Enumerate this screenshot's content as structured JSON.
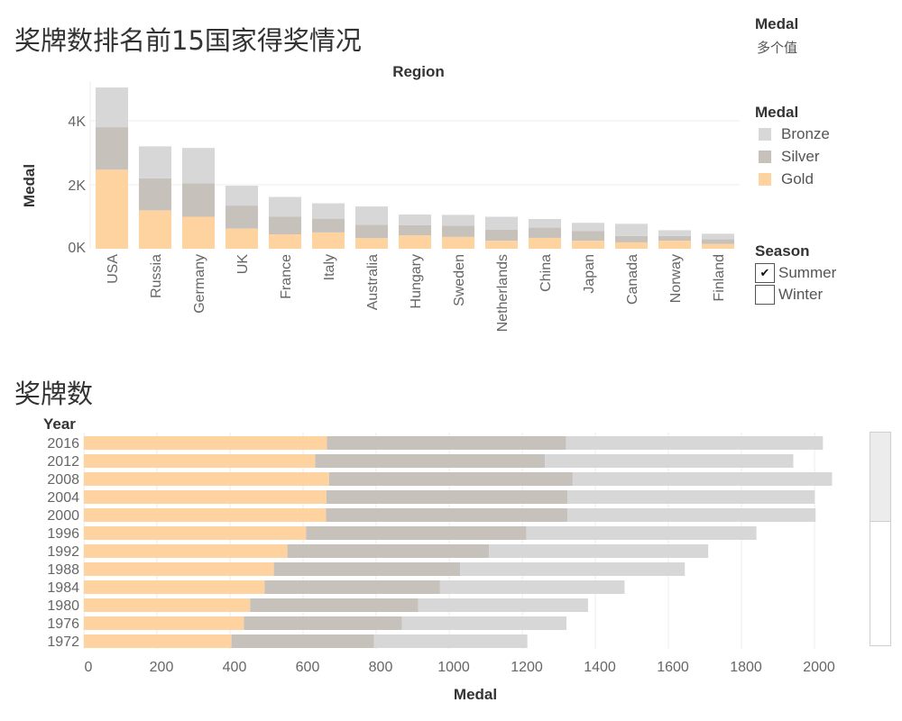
{
  "colors": {
    "gold": "#ffd39f",
    "silver": "#c7c1bc",
    "bronze": "#d7d7d7",
    "grid": "#eeeeee",
    "text": "#555555"
  },
  "filter": {
    "title": "Medal",
    "value": "多个值"
  },
  "legend": {
    "title": "Medal",
    "items": [
      {
        "label": "Bronze",
        "color": "#d7d7d7"
      },
      {
        "label": "Silver",
        "color": "#c7c1bc"
      },
      {
        "label": "Gold",
        "color": "#ffd39f"
      }
    ]
  },
  "season": {
    "title": "Season",
    "options": [
      {
        "label": "Summer",
        "checked": true,
        "mark": "✔"
      },
      {
        "label": "Winter",
        "checked": false,
        "mark": ""
      }
    ]
  },
  "chart_data": [
    {
      "type": "bar",
      "stacked": true,
      "title": "奖牌数排名前15国家得奖情况",
      "column_header": "Region",
      "ylabel": "Medal",
      "ylim": [
        0,
        5200
      ],
      "yticks": [
        {
          "value": 0,
          "label": "0K"
        },
        {
          "value": 2000,
          "label": "2K"
        },
        {
          "value": 4000,
          "label": "4K"
        }
      ],
      "categories": [
        "USA",
        "Russia",
        "Germany",
        "UK",
        "France",
        "Italy",
        "Australia",
        "Hungary",
        "Sweden",
        "Netherlands",
        "China",
        "Japan",
        "Canada",
        "Norway",
        "Finland"
      ],
      "series": [
        {
          "name": "Gold",
          "values": [
            2470,
            1200,
            1000,
            630,
            450,
            510,
            330,
            420,
            370,
            250,
            340,
            250,
            200,
            250,
            150
          ]
        },
        {
          "name": "Silver",
          "values": [
            1330,
            1000,
            1050,
            720,
            550,
            430,
            420,
            320,
            350,
            350,
            320,
            300,
            200,
            150,
            150
          ]
        },
        {
          "name": "Bronze",
          "values": [
            1240,
            1000,
            1100,
            620,
            620,
            480,
            570,
            330,
            340,
            400,
            270,
            260,
            380,
            180,
            170
          ]
        }
      ]
    },
    {
      "type": "bar",
      "orientation": "horizontal",
      "stacked": true,
      "title": "奖牌数",
      "row_header": "Year",
      "xlabel": "Medal",
      "xlim": [
        0,
        2100
      ],
      "xticks": [
        0,
        200,
        400,
        600,
        800,
        1000,
        1200,
        1400,
        1600,
        1800,
        2000
      ],
      "categories": [
        "2016",
        "2012",
        "2008",
        "2004",
        "2000",
        "1996",
        "1992",
        "1988",
        "1984",
        "1980",
        "1976",
        "1972"
      ],
      "series": [
        {
          "name": "Gold",
          "values": [
            665,
            633,
            671,
            664,
            663,
            608,
            557,
            520,
            495,
            455,
            438,
            404
          ]
        },
        {
          "name": "Silver",
          "values": [
            655,
            629,
            667,
            660,
            661,
            603,
            552,
            510,
            480,
            460,
            433,
            390
          ]
        },
        {
          "name": "Bronze",
          "values": [
            703,
            680,
            710,
            677,
            679,
            630,
            600,
            615,
            505,
            465,
            450,
            420
          ]
        }
      ]
    }
  ]
}
